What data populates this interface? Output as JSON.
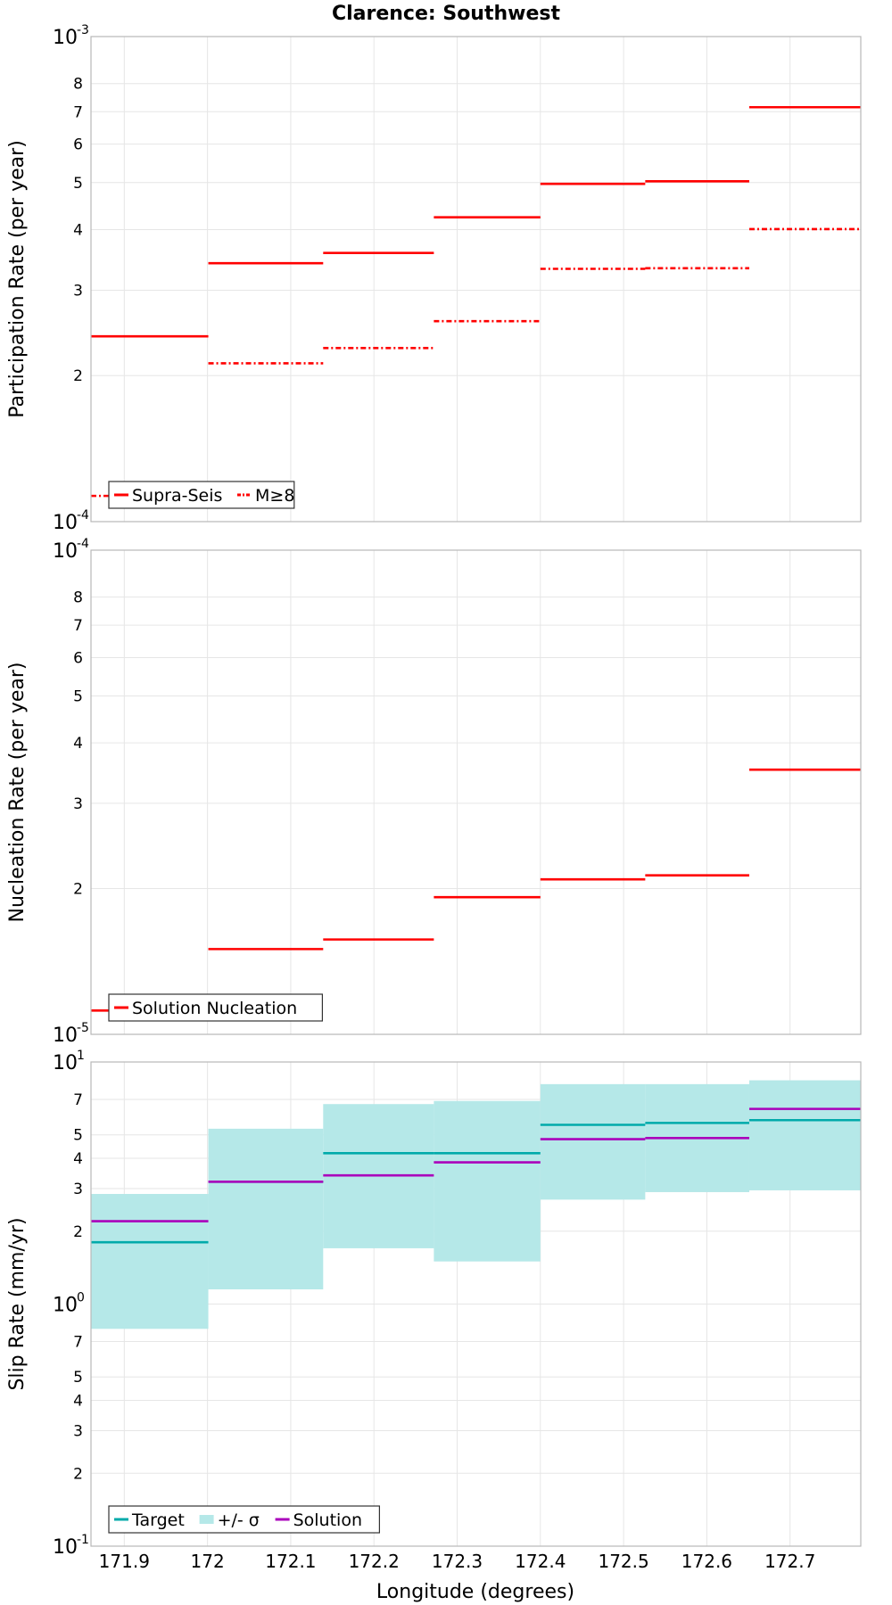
{
  "title": "Clarence: Southwest",
  "xlabel": "Longitude (degrees)",
  "x_ticks": [
    "171.9",
    "172",
    "172.1",
    "172.2",
    "172.3",
    "172.4",
    "172.5",
    "172.6",
    "172.7"
  ],
  "x_tick_values": [
    171.9,
    172.0,
    172.1,
    172.2,
    172.3,
    172.4,
    172.5,
    172.6,
    172.7
  ],
  "xlim": [
    171.86,
    172.785
  ],
  "colors": {
    "red": "#ff0000",
    "target": "#00aaaa",
    "band": "#b5e8e8",
    "solution": "#aa00bb"
  },
  "chart_data": [
    {
      "type": "line",
      "ylabel": "Participation Rate (per year)",
      "yscale": "log",
      "ylim": [
        0.0001,
        0.001
      ],
      "y_major_ticks": [
        {
          "base": "10",
          "exp": "-4"
        },
        {
          "base": "10",
          "exp": "-3"
        }
      ],
      "y_minor_ticks": [
        "2",
        "3",
        "4",
        "5",
        "6",
        "7",
        "8"
      ],
      "y_minor_values": [
        0.0002,
        0.0003,
        0.0004,
        0.0005,
        0.0006,
        0.0007,
        0.0008
      ],
      "legend": [
        {
          "label": "Supra-Seis",
          "style": "solid"
        },
        {
          "label": "M≥8",
          "style": "dashdot"
        }
      ],
      "series": [
        {
          "name": "Supra-Seis",
          "style": "solid",
          "color": "#ff0000",
          "segments": [
            {
              "x0": 171.86,
              "x1": 172.001,
              "y": 0.000241
            },
            {
              "x0": 172.001,
              "x1": 172.139,
              "y": 0.000341
            },
            {
              "x0": 172.139,
              "x1": 172.272,
              "y": 0.000358
            },
            {
              "x0": 172.272,
              "x1": 172.4,
              "y": 0.000424
            },
            {
              "x0": 172.4,
              "x1": 172.526,
              "y": 0.000497
            },
            {
              "x0": 172.526,
              "x1": 172.651,
              "y": 0.000503
            },
            {
              "x0": 172.651,
              "x1": 172.785,
              "y": 0.000715
            }
          ]
        },
        {
          "name": "M≥8",
          "style": "dashdot",
          "color": "#ff0000",
          "segments": [
            {
              "x0": 171.86,
              "x1": 172.001,
              "y": 0.000113
            },
            {
              "x0": 172.001,
              "x1": 172.139,
              "y": 0.000212
            },
            {
              "x0": 172.139,
              "x1": 172.272,
              "y": 0.000228
            },
            {
              "x0": 172.272,
              "x1": 172.4,
              "y": 0.000259
            },
            {
              "x0": 172.4,
              "x1": 172.526,
              "y": 0.000332
            },
            {
              "x0": 172.526,
              "x1": 172.651,
              "y": 0.000333
            },
            {
              "x0": 172.651,
              "x1": 172.785,
              "y": 0.000401
            }
          ]
        }
      ]
    },
    {
      "type": "line",
      "ylabel": "Nucleation Rate (per year)",
      "yscale": "log",
      "ylim": [
        1e-05,
        0.0001
      ],
      "y_major_ticks": [
        {
          "base": "10",
          "exp": "-5"
        },
        {
          "base": "10",
          "exp": "-4"
        }
      ],
      "y_minor_ticks": [
        "2",
        "3",
        "4",
        "5",
        "6",
        "7",
        "8"
      ],
      "y_minor_values": [
        2e-05,
        3e-05,
        4e-05,
        5e-05,
        6e-05,
        7e-05,
        8e-05
      ],
      "legend": [
        {
          "label": "Solution Nucleation",
          "style": "solid"
        }
      ],
      "series": [
        {
          "name": "Solution Nucleation",
          "style": "solid",
          "color": "#ff0000",
          "segments": [
            {
              "x0": 171.86,
              "x1": 172.001,
              "y": 1.12e-05
            },
            {
              "x0": 172.001,
              "x1": 172.139,
              "y": 1.5e-05
            },
            {
              "x0": 172.139,
              "x1": 172.272,
              "y": 1.57e-05
            },
            {
              "x0": 172.272,
              "x1": 172.4,
              "y": 1.92e-05
            },
            {
              "x0": 172.4,
              "x1": 172.526,
              "y": 2.09e-05
            },
            {
              "x0": 172.526,
              "x1": 172.651,
              "y": 2.13e-05
            },
            {
              "x0": 172.651,
              "x1": 172.785,
              "y": 3.52e-05
            }
          ]
        }
      ]
    },
    {
      "type": "line",
      "ylabel": "Slip Rate (mm/yr)",
      "yscale": "log",
      "ylim": [
        0.1,
        10
      ],
      "y_major_ticks": [
        {
          "base": "10",
          "exp": "-1"
        },
        {
          "base": "10",
          "exp": "0"
        },
        {
          "base": "10",
          "exp": "1"
        }
      ],
      "y_minor_ticks": [
        "2",
        "3",
        "4",
        "5",
        "7",
        "2",
        "3",
        "4",
        "5",
        "7"
      ],
      "y_minor_values": [
        0.2,
        0.3,
        0.4,
        0.5,
        0.7,
        2,
        3,
        4,
        5,
        7
      ],
      "legend": [
        {
          "label": "Target",
          "style": "solid"
        },
        {
          "label": "+/- σ",
          "style": "band"
        },
        {
          "label": "Solution",
          "style": "solid"
        }
      ],
      "band": [
        {
          "x0": 171.86,
          "x1": 172.001,
          "lo": 0.79,
          "hi": 2.85
        },
        {
          "x0": 172.001,
          "x1": 172.139,
          "lo": 1.15,
          "hi": 5.3
        },
        {
          "x0": 172.139,
          "x1": 172.272,
          "lo": 1.7,
          "hi": 6.7
        },
        {
          "x0": 172.272,
          "x1": 172.4,
          "lo": 1.5,
          "hi": 6.9
        },
        {
          "x0": 172.4,
          "x1": 172.526,
          "lo": 2.7,
          "hi": 8.1
        },
        {
          "x0": 172.526,
          "x1": 172.651,
          "lo": 2.9,
          "hi": 8.1
        },
        {
          "x0": 172.651,
          "x1": 172.785,
          "lo": 2.95,
          "hi": 8.4
        }
      ],
      "series": [
        {
          "name": "Target",
          "style": "solid",
          "color": "#00aaaa",
          "segments": [
            {
              "x0": 171.86,
              "x1": 172.001,
              "y": 1.8
            },
            {
              "x0": 172.001,
              "x1": 172.139,
              "y": 3.2
            },
            {
              "x0": 172.139,
              "x1": 172.272,
              "y": 4.2
            },
            {
              "x0": 172.272,
              "x1": 172.4,
              "y": 4.2
            },
            {
              "x0": 172.4,
              "x1": 172.526,
              "y": 5.5
            },
            {
              "x0": 172.526,
              "x1": 172.651,
              "y": 5.6
            },
            {
              "x0": 172.651,
              "x1": 172.785,
              "y": 5.75
            }
          ]
        },
        {
          "name": "Solution",
          "style": "solid",
          "color": "#aa00bb",
          "segments": [
            {
              "x0": 171.86,
              "x1": 172.001,
              "y": 2.2
            },
            {
              "x0": 172.001,
              "x1": 172.139,
              "y": 3.2
            },
            {
              "x0": 172.139,
              "x1": 172.272,
              "y": 3.4
            },
            {
              "x0": 172.272,
              "x1": 172.4,
              "y": 3.85
            },
            {
              "x0": 172.4,
              "x1": 172.526,
              "y": 4.8
            },
            {
              "x0": 172.526,
              "x1": 172.651,
              "y": 4.85
            },
            {
              "x0": 172.651,
              "x1": 172.785,
              "y": 6.4
            }
          ]
        }
      ]
    }
  ]
}
